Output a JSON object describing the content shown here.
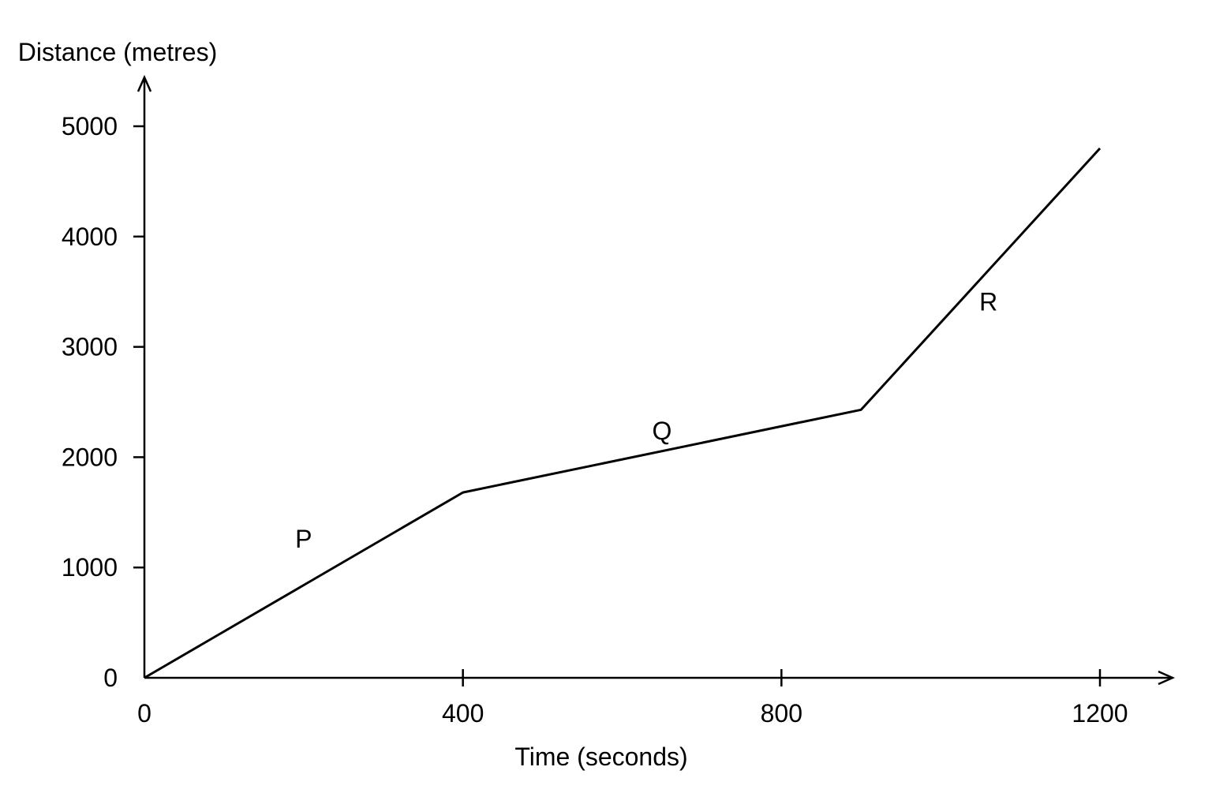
{
  "chart_data": {
    "type": "line",
    "title": "",
    "xlabel": "Time (seconds)",
    "ylabel": "Distance (metres)",
    "xlim": [
      0,
      1200
    ],
    "ylim": [
      0,
      5000
    ],
    "x_ticks": [
      0,
      400,
      800,
      1200
    ],
    "y_ticks": [
      0,
      1000,
      2000,
      3000,
      4000,
      5000
    ],
    "x": [
      0,
      400,
      900,
      1200
    ],
    "y": [
      0,
      1680,
      2430,
      4800
    ],
    "grid": false,
    "segment_labels": [
      {
        "text": "P",
        "x": 200,
        "y": 1260
      },
      {
        "text": "Q",
        "x": 650,
        "y": 2240
      },
      {
        "text": "R",
        "x": 1060,
        "y": 3410
      }
    ],
    "colors": {
      "line": "#000000",
      "axis": "#000000",
      "background": "#ffffff"
    }
  }
}
